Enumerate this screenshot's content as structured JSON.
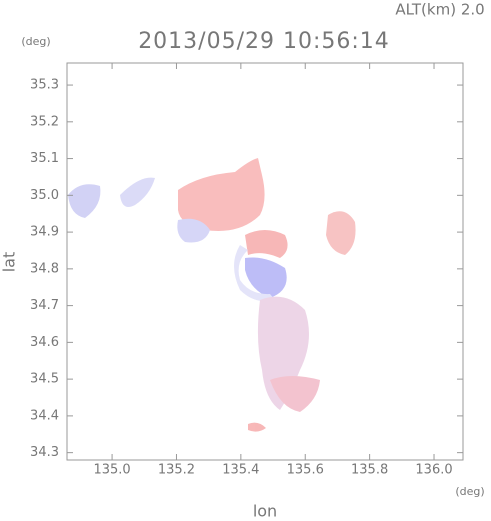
{
  "chart_data": {
    "type": "map",
    "title": "2013/05/29 10:56:14",
    "annotation": "ALT(km)  2.0",
    "x_unit": "(deg)",
    "y_unit": "(deg)",
    "xlabel": "lon",
    "ylabel": "lat",
    "xlim": [
      134.86,
      136.09
    ],
    "ylim": [
      34.28,
      35.36
    ],
    "xticks": [
      {
        "value": 135,
        "label": "135.0"
      },
      135.2,
      135.4,
      135.6,
      135.8,
      {
        "value": 136,
        "label": "136.0"
      }
    ],
    "yticks": [
      34.3,
      34.4,
      34.5,
      34.6,
      34.7,
      34.8,
      34.9,
      {
        "value": 35,
        "label": "35.0"
      },
      35.1,
      35.2,
      35.3
    ]
  }
}
